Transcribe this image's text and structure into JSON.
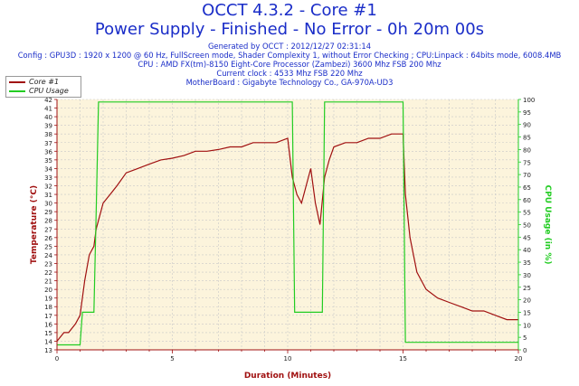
{
  "header": {
    "title": "OCCT 4.3.2 - Core #1",
    "subtitle": "Power Supply - Finished - No Error - 0h 20m 00s",
    "info_lines": [
      "Generated by OCCT : 2012/12/27 02:31:14",
      "Config : GPU3D : 1920 x 1200 @ 60 Hz, FullScreen mode, Shader Complexity 1, without Error Checking ; CPU:Linpack : 64bits mode, 6008.4MB",
      "CPU : AMD FX(tm)-8150 Eight-Core Processor (Zambezi) 3600 Mhz FSB 200 Mhz",
      "Current clock : 4533 Mhz FSB 220 Mhz",
      "MotherBoard : Gigabyte Technology Co., GA-970A-UD3"
    ]
  },
  "colors": {
    "background": "#ffffff",
    "plot_bg": "#fcf4dc",
    "title": "#1a2dc8",
    "core": "#a01010",
    "cpu": "#22cc22",
    "grid": "#c8c8c8",
    "axis_left": "#a01010",
    "axis_right": "#22cc22",
    "axis_bottom": "#a01010"
  },
  "chart_data": {
    "type": "line",
    "xlabel": "Duration (Minutes)",
    "ylabel_left": "Temperature (°C)",
    "ylabel_right": "CPU Usage (in %)",
    "xlim": [
      0,
      20
    ],
    "xticks": [
      0,
      5,
      10,
      15,
      20
    ],
    "ylim_left": [
      13,
      42
    ],
    "ylim_right": [
      0,
      100
    ],
    "yticks_left": [
      13,
      14,
      15,
      16,
      17,
      18,
      19,
      20,
      21,
      22,
      23,
      24,
      25,
      26,
      27,
      28,
      29,
      30,
      31,
      32,
      33,
      34,
      35,
      36,
      37,
      38,
      39,
      40,
      41,
      42
    ],
    "yticks_right": [
      0,
      5,
      10,
      15,
      20,
      25,
      30,
      35,
      40,
      45,
      50,
      55,
      60,
      65,
      70,
      75,
      80,
      85,
      90,
      95,
      100
    ],
    "grid": true,
    "legend": {
      "position": "top-left",
      "entries": [
        "Core #1",
        "CPU Usage"
      ]
    },
    "series": [
      {
        "name": "Core #1",
        "axis": "left",
        "x": [
          0,
          0.3,
          0.5,
          0.8,
          1.0,
          1.2,
          1.4,
          1.6,
          1.7,
          1.8,
          2.0,
          2.3,
          2.6,
          3.0,
          3.5,
          4.0,
          4.5,
          5.0,
          5.5,
          6.0,
          6.5,
          7.0,
          7.5,
          8.0,
          8.5,
          9.0,
          9.5,
          10.0,
          10.2,
          10.4,
          10.6,
          10.8,
          11.0,
          11.2,
          11.4,
          11.6,
          11.8,
          12.0,
          12.5,
          13.0,
          13.5,
          14.0,
          14.5,
          15.0,
          15.1,
          15.3,
          15.6,
          16.0,
          16.5,
          17.0,
          17.5,
          18.0,
          18.5,
          19.0,
          19.5,
          20.0
        ],
        "y": [
          14,
          15,
          15,
          16,
          17,
          21,
          24,
          25,
          27,
          28,
          30,
          31,
          32,
          33.5,
          34,
          34.5,
          35,
          35.2,
          35.5,
          36,
          36,
          36.2,
          36.5,
          36.5,
          37,
          37,
          37,
          37.5,
          33,
          31,
          30,
          32,
          34,
          30,
          27.5,
          33,
          35,
          36.5,
          37,
          37,
          37.5,
          37.5,
          38,
          38,
          31,
          26,
          22,
          20,
          19,
          18.5,
          18,
          17.5,
          17.5,
          17,
          16.5,
          16.5
        ]
      },
      {
        "name": "CPU Usage",
        "axis": "right",
        "x": [
          0,
          1.0,
          1.1,
          1.6,
          1.7,
          1.8,
          10.2,
          10.3,
          11.5,
          11.6,
          15.0,
          15.1,
          20.0
        ],
        "y": [
          2,
          2,
          15,
          15,
          55,
          99,
          99,
          15,
          15,
          99,
          99,
          3,
          3
        ]
      }
    ]
  }
}
